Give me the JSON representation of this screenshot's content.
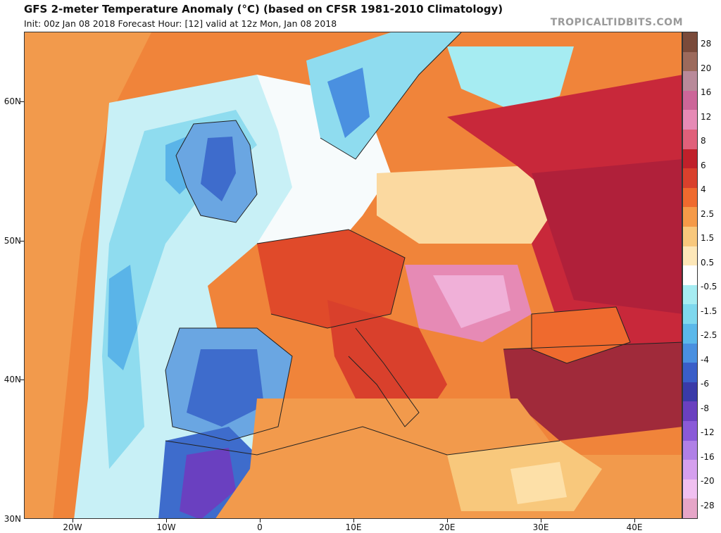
{
  "header": {
    "title": "GFS 2-meter Temperature Anomaly (°C) (based on CFSR 1981-2010 Climatology)",
    "subtitle": "Init: 00z Jan 08 2018   Forecast Hour: [12]   valid at 12z Mon, Jan 08 2018",
    "brand": "TROPICALTIDBITS.COM"
  },
  "axes": {
    "lat_labels": [
      "60N",
      "50N",
      "40N",
      "30N"
    ],
    "lon_labels": [
      "20W",
      "10W",
      "0",
      "10E",
      "20E",
      "30E",
      "40E"
    ]
  },
  "colorbar": {
    "labels": [
      "28",
      "20",
      "16",
      "12",
      "8",
      "6",
      "4",
      "2.5",
      "1.5",
      "0.5",
      "-0.5",
      "-1.5",
      "-2.5",
      "-4",
      "-6",
      "-8",
      "-12",
      "-16",
      "-20",
      "-28"
    ],
    "colors": [
      "#7a4a3a",
      "#9c6a5c",
      "#b98a9a",
      "#cc6699",
      "#e68ab5",
      "#e0607a",
      "#c0202a",
      "#d9402c",
      "#ef6a2e",
      "#f59a48",
      "#f8c87c",
      "#fde7b8",
      "#ffffff",
      "#a6ecf2",
      "#7fd8ee",
      "#5bb8ea",
      "#4a90e0",
      "#3a5ec8",
      "#3a3aa8",
      "#6a40c0",
      "#8a5ad8",
      "#b080e6",
      "#d5a0ee",
      "#f0c0f0",
      "#e6a6c8"
    ]
  }
}
